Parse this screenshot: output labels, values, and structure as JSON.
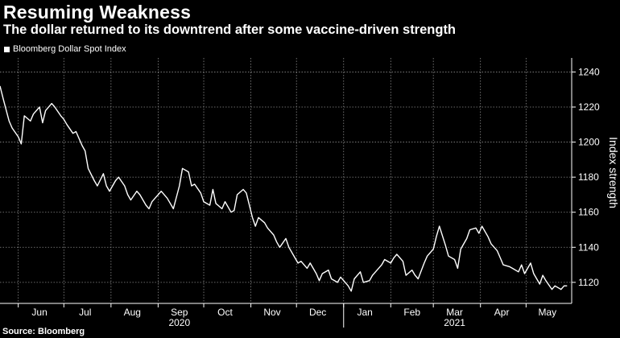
{
  "header": {
    "title": "Resuming Weakness",
    "subtitle": "The dollar returned to its downtrend after some vaccine-driven strength"
  },
  "legend": {
    "label": "Bloomberg Dollar Spot Index"
  },
  "footer": {
    "source": "Source: Bloomberg"
  },
  "colors": {
    "background": "#000000",
    "line": "#ffffff",
    "grid": "#8a8a8a"
  },
  "chart_data": {
    "type": "line",
    "title": "Resuming Weakness",
    "subtitle": "The dollar returned to its downtrend after some vaccine-driven strength",
    "ylabel": "Index strength",
    "xlabel": "",
    "y_axis_position": "right",
    "ylim": [
      1108,
      1248
    ],
    "yticks": [
      1120,
      1140,
      1160,
      1180,
      1200,
      1220,
      1240
    ],
    "xlim": [
      "2020-05-20",
      "2021-05-31"
    ],
    "x_month_ticks": [
      "Jun",
      "Jul",
      "Aug",
      "Sep",
      "Oct",
      "Nov",
      "Dec",
      "Jan",
      "Feb",
      "Mar",
      "Apr",
      "May"
    ],
    "x_month_label_dates": [
      "2020-06-15",
      "2020-07-15",
      "2020-08-15",
      "2020-09-15",
      "2020-10-15",
      "2020-11-15",
      "2020-12-15",
      "2021-01-15",
      "2021-02-15",
      "2021-03-15",
      "2021-04-15",
      "2021-05-15"
    ],
    "x_year_labels": [
      {
        "label": "2020",
        "date": "2020-09-15"
      },
      {
        "label": "2021",
        "date": "2021-03-15"
      }
    ],
    "grid": true,
    "legend_position": "top-left",
    "series": [
      {
        "name": "Bloomberg Dollar Spot Index",
        "x": [
          "2020-05-20",
          "2020-05-22",
          "2020-05-26",
          "2020-05-28",
          "2020-06-01",
          "2020-06-03",
          "2020-06-05",
          "2020-06-09",
          "2020-06-11",
          "2020-06-15",
          "2020-06-17",
          "2020-06-19",
          "2020-06-23",
          "2020-06-25",
          "2020-06-29",
          "2020-07-01",
          "2020-07-03",
          "2020-07-07",
          "2020-07-09",
          "2020-07-13",
          "2020-07-15",
          "2020-07-17",
          "2020-07-21",
          "2020-07-23",
          "2020-07-27",
          "2020-07-29",
          "2020-07-31",
          "2020-08-04",
          "2020-08-06",
          "2020-08-10",
          "2020-08-12",
          "2020-08-14",
          "2020-08-18",
          "2020-08-20",
          "2020-08-24",
          "2020-08-26",
          "2020-08-28",
          "2020-09-01",
          "2020-09-03",
          "2020-09-07",
          "2020-09-09",
          "2020-09-11",
          "2020-09-15",
          "2020-09-17",
          "2020-09-21",
          "2020-09-23",
          "2020-09-25",
          "2020-09-29",
          "2020-10-01",
          "2020-10-05",
          "2020-10-07",
          "2020-10-09",
          "2020-10-13",
          "2020-10-15",
          "2020-10-19",
          "2020-10-21",
          "2020-10-23",
          "2020-10-27",
          "2020-10-29",
          "2020-11-02",
          "2020-11-04",
          "2020-11-06",
          "2020-11-10",
          "2020-11-12",
          "2020-11-16",
          "2020-11-18",
          "2020-11-20",
          "2020-11-24",
          "2020-11-26",
          "2020-11-30",
          "2020-12-02",
          "2020-12-04",
          "2020-12-08",
          "2020-12-10",
          "2020-12-14",
          "2020-12-16",
          "2020-12-18",
          "2020-12-22",
          "2020-12-24",
          "2020-12-28",
          "2020-12-30",
          "2021-01-04",
          "2021-01-06",
          "2021-01-08",
          "2021-01-12",
          "2021-01-14",
          "2021-01-18",
          "2021-01-20",
          "2021-01-22",
          "2021-01-26",
          "2021-01-28",
          "2021-02-01",
          "2021-02-03",
          "2021-02-05",
          "2021-02-09",
          "2021-02-11",
          "2021-02-15",
          "2021-02-17",
          "2021-02-19",
          "2021-02-23",
          "2021-02-25",
          "2021-03-01",
          "2021-03-03",
          "2021-03-05",
          "2021-03-09",
          "2021-03-11",
          "2021-03-15",
          "2021-03-17",
          "2021-03-19",
          "2021-03-23",
          "2021-03-25",
          "2021-03-29",
          "2021-03-31",
          "2021-04-02",
          "2021-04-06",
          "2021-04-08",
          "2021-04-12",
          "2021-04-14",
          "2021-04-16",
          "2021-04-20",
          "2021-04-22",
          "2021-04-26",
          "2021-04-28",
          "2021-04-30",
          "2021-05-04",
          "2021-05-06",
          "2021-05-10",
          "2021-05-12",
          "2021-05-14",
          "2021-05-18",
          "2021-05-20",
          "2021-05-24",
          "2021-05-26",
          "2021-05-28"
        ],
        "values": [
          1232,
          1225,
          1212,
          1208,
          1203,
          1199,
          1215,
          1212,
          1216,
          1220,
          1211,
          1218,
          1222,
          1220,
          1215,
          1213,
          1210,
          1205,
          1206,
          1198,
          1195,
          1185,
          1178,
          1175,
          1182,
          1175,
          1172,
          1178,
          1180,
          1175,
          1170,
          1167,
          1172,
          1170,
          1164,
          1162,
          1166,
          1170,
          1172,
          1168,
          1165,
          1162,
          1175,
          1185,
          1183,
          1175,
          1176,
          1171,
          1166,
          1164,
          1173,
          1165,
          1162,
          1166,
          1160,
          1161,
          1170,
          1173,
          1171,
          1157,
          1152,
          1157,
          1154,
          1151,
          1147,
          1143,
          1140,
          1145,
          1140,
          1134,
          1131,
          1132,
          1128,
          1131,
          1125,
          1121,
          1125,
          1127,
          1122,
          1120,
          1123,
          1118,
          1115,
          1122,
          1126,
          1120,
          1121,
          1124,
          1126,
          1130,
          1133,
          1131,
          1134,
          1136,
          1132,
          1124,
          1127,
          1124,
          1122,
          1131,
          1135,
          1139,
          1146,
          1152,
          1141,
          1135,
          1133,
          1128,
          1139,
          1145,
          1150,
          1151,
          1148,
          1152,
          1146,
          1142,
          1138,
          1134,
          1130,
          1129,
          1128,
          1126,
          1130,
          1125,
          1131,
          1125,
          1119,
          1124,
          1121,
          1116,
          1118,
          1116,
          1118,
          1118
        ]
      }
    ]
  }
}
